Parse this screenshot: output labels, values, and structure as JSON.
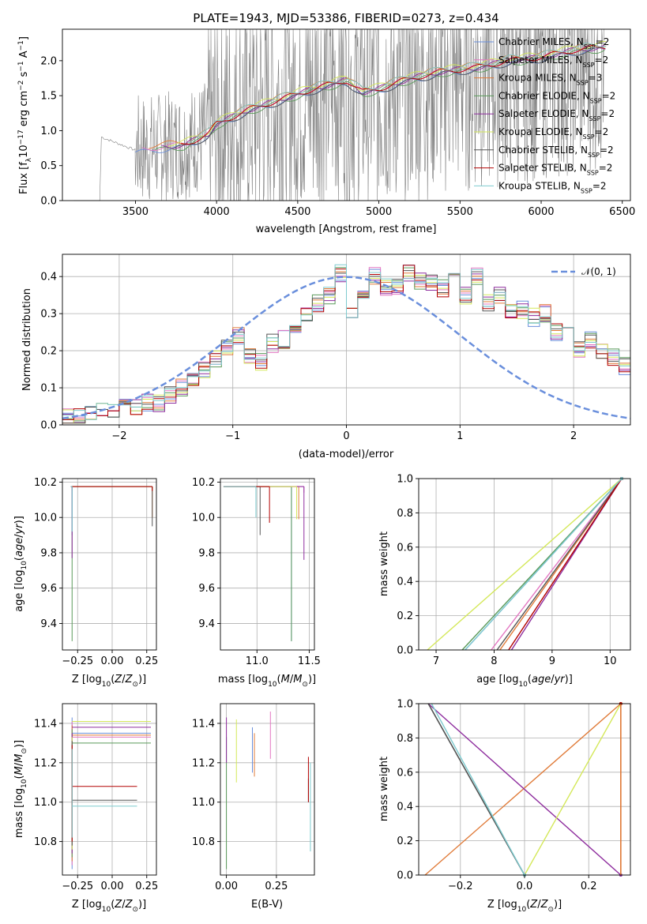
{
  "colors": {
    "chabrier_miles": "#6a8fdc",
    "salpeter_miles": "#e377c2",
    "kroupa_miles": "#e07b39",
    "chabrier_elodie": "#5a9a5a",
    "salpeter_elodie": "#8e2d9e",
    "kroupa_elodie": "#d4e85a",
    "chabrier_stelib": "#555555",
    "salpeter_stelib": "#b30000",
    "kroupa_stelib": "#7ecbcf",
    "data": "#7f7f7f",
    "gaussian": "#6a8fdc"
  },
  "chart_data": [
    {
      "type": "line",
      "title": "PLATE=1943, MJD=53386, FIBERID=0273, z=0.434",
      "xlabel": "wavelength [Angstrom, rest frame]",
      "ylabel": "Flux [f",
      "xlim": [
        3050,
        6550
      ],
      "ylim": [
        0,
        2.45
      ],
      "xticks": [
        "3500",
        "4000",
        "4500",
        "5000",
        "5500",
        "6000",
        "6500"
      ],
      "yticks": [
        "0.0",
        "0.5",
        "1.0",
        "1.5",
        "2.0"
      ],
      "legend_position": "top-right",
      "legend": [
        {
          "name": "Chabrier MILES",
          "n": "2"
        },
        {
          "name": "Salpeter MILES",
          "n": "2"
        },
        {
          "name": "Kroupa MILES",
          "n": "3"
        },
        {
          "name": "Chabrier ELODIE",
          "n": "2"
        },
        {
          "name": "Salpeter ELODIE",
          "n": "2"
        },
        {
          "name": "Kroupa ELODIE",
          "n": "2"
        },
        {
          "name": "Chabrier STELIB",
          "n": "2"
        },
        {
          "name": "Salpeter STELIB",
          "n": "2"
        },
        {
          "name": "Kroupa STELIB",
          "n": "2"
        }
      ],
      "legend_nssp_label": "N",
      "legend_nssp_sub": "SSP",
      "model_continuum": {
        "x": [
          3300,
          3500,
          3600,
          3800,
          3950,
          4000,
          4200,
          4400,
          4600,
          4800,
          4900,
          5000,
          5200,
          5400,
          5600,
          5800,
          6000,
          6200,
          6400
        ],
        "y": [
          0.9,
          0.72,
          0.75,
          0.8,
          0.95,
          1.1,
          1.3,
          1.45,
          1.6,
          1.72,
          1.55,
          1.6,
          1.75,
          1.85,
          1.9,
          2.0,
          2.05,
          2.15,
          2.2
        ]
      }
    },
    {
      "type": "step",
      "xlabel": "(data-model)/error",
      "ylabel": "Normed distribution",
      "xlim": [
        -2.5,
        2.5
      ],
      "ylim": [
        0,
        0.46
      ],
      "xticks": [
        "−2",
        "−1",
        "0",
        "1",
        "2"
      ],
      "yticks": [
        "0.0",
        "0.1",
        "0.2",
        "0.3",
        "0.4"
      ],
      "legend_position": "top-right",
      "gaussian_label": "𝒩(0, 1)",
      "hist_x_edges_start": -2.5,
      "hist_bin_width": 0.1,
      "hist_base": [
        0.02,
        0.02,
        0.03,
        0.04,
        0.04,
        0.05,
        0.05,
        0.06,
        0.06,
        0.08,
        0.1,
        0.12,
        0.15,
        0.18,
        0.21,
        0.24,
        0.19,
        0.17,
        0.22,
        0.23,
        0.27,
        0.3,
        0.33,
        0.35,
        0.41,
        0.31,
        0.34,
        0.4,
        0.37,
        0.37,
        0.41,
        0.39,
        0.38,
        0.37,
        0.4,
        0.35,
        0.4,
        0.33,
        0.35,
        0.3,
        0.31,
        0.29,
        0.3,
        0.25,
        0.27,
        0.2,
        0.23,
        0.2,
        0.18,
        0.16
      ]
    },
    {
      "type": "scatter",
      "xlabel": "Z [log",
      "ylabel": "age  [log",
      "xlim": [
        -0.36,
        0.32
      ],
      "ylim": [
        9.25,
        10.22
      ],
      "xticks": [
        "−0.25",
        "0.00",
        "0.25"
      ],
      "yticks": [
        "9.4",
        "9.6",
        "9.8",
        "10.0",
        "10.2"
      ]
    },
    {
      "type": "scatter",
      "xlabel": "mass [log",
      "ylabel": "",
      "xlim": [
        10.65,
        11.55
      ],
      "ylim": [
        9.25,
        10.22
      ],
      "xticks": [
        "11.0",
        "11.5"
      ],
      "yticks": [
        "9.4",
        "9.6",
        "9.8",
        "10.0",
        "10.2"
      ]
    },
    {
      "type": "line",
      "xlabel": "age  [log",
      "ylabel": "mass weight",
      "xlim": [
        6.7,
        10.35
      ],
      "ylim": [
        0,
        1
      ],
      "xticks": [
        "7",
        "8",
        "9",
        "10"
      ],
      "yticks": [
        "0.0",
        "0.2",
        "0.4",
        "0.6",
        "0.8",
        "1.0"
      ]
    },
    {
      "type": "scatter",
      "xlabel": "Z [log",
      "ylabel": "mass [log",
      "xlim": [
        -0.36,
        0.32
      ],
      "ylim": [
        10.63,
        11.5
      ],
      "xticks": [
        "−0.25",
        "0.00",
        "0.25"
      ],
      "yticks": [
        "10.8",
        "11.0",
        "11.2",
        "11.4"
      ]
    },
    {
      "type": "scatter",
      "xlabel": "E(B-V)",
      "ylabel": "",
      "xlim": [
        -0.03,
        0.44
      ],
      "ylim": [
        10.63,
        11.5
      ],
      "xticks": [
        "0.00",
        "0.25"
      ],
      "yticks": [
        "10.8",
        "11.0",
        "11.2",
        "11.4"
      ]
    },
    {
      "type": "line",
      "xlabel": "Z [log",
      "ylabel": "mass weight",
      "xlim": [
        -0.33,
        0.33
      ],
      "ylim": [
        0,
        1
      ],
      "xticks": [
        "−0.2",
        "0.0",
        "0.2"
      ],
      "yticks": [
        "0.0",
        "0.2",
        "0.4",
        "0.6",
        "0.8",
        "1.0"
      ]
    }
  ]
}
